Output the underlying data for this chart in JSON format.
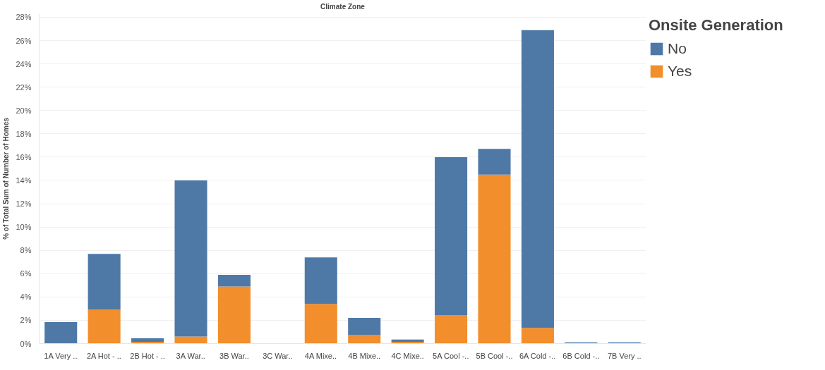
{
  "chart_data": {
    "type": "bar",
    "stacked": true,
    "xlabel": "Climate Zone",
    "ylabel": "% of Total Sum of Number of Homes",
    "legend_title": "Onsite Generation",
    "categories": [
      "1A Very ..",
      "2A Hot - ..",
      "2B Hot - ..",
      "3A War..",
      "3B War..",
      "3C War..",
      "4A Mixe..",
      "4B Mixe..",
      "4C Mixe..",
      "5A Cool -..",
      "5B Cool -..",
      "6A Cold -..",
      "6B Cold -..",
      "7B Very .."
    ],
    "series": [
      {
        "name": "Yes",
        "color": "#f28e2b",
        "values": [
          null,
          2.9,
          0.15,
          0.6,
          4.9,
          0,
          3.4,
          0.75,
          0.15,
          2.45,
          14.5,
          1.35,
          null,
          null
        ]
      },
      {
        "name": "No",
        "color": "#4e79a7",
        "values": [
          1.85,
          4.8,
          0.3,
          13.4,
          1.0,
          0,
          4.0,
          1.45,
          0.2,
          13.55,
          2.2,
          25.55,
          0.1,
          0.1
        ]
      }
    ],
    "ylim": [
      0,
      28.3
    ],
    "yticks": [
      {
        "value": 0,
        "label": "0%"
      },
      {
        "value": 2,
        "label": "2%"
      },
      {
        "value": 4,
        "label": "4%"
      },
      {
        "value": 6,
        "label": "6%"
      },
      {
        "value": 8,
        "label": "8%"
      },
      {
        "value": 10,
        "label": "10%"
      },
      {
        "value": 12,
        "label": "12%"
      },
      {
        "value": 14,
        "label": "14%"
      },
      {
        "value": 16,
        "label": "16%"
      },
      {
        "value": 18,
        "label": "18%"
      },
      {
        "value": 20,
        "label": "20%"
      },
      {
        "value": 22,
        "label": "22%"
      },
      {
        "value": 24,
        "label": "24%"
      },
      {
        "value": 26,
        "label": "26%"
      },
      {
        "value": 28,
        "label": "28%"
      }
    ],
    "grid": "y",
    "legend": "top right"
  }
}
